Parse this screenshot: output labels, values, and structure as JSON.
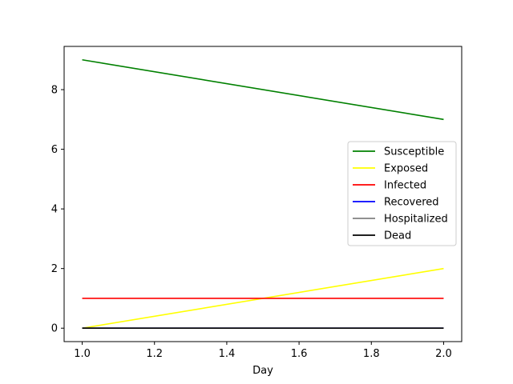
{
  "chart_data": {
    "type": "line",
    "title": "",
    "xlabel": "Day",
    "ylabel": "",
    "x": [
      1.0,
      2.0
    ],
    "xlim": [
      0.95,
      2.05
    ],
    "ylim": [
      -0.45,
      9.45
    ],
    "xticks": [
      1.0,
      1.2,
      1.4,
      1.6,
      1.8,
      2.0
    ],
    "xtick_labels": [
      "1.0",
      "1.2",
      "1.4",
      "1.6",
      "1.8",
      "2.0"
    ],
    "yticks": [
      0,
      2,
      4,
      6,
      8
    ],
    "ytick_labels": [
      "0",
      "2",
      "4",
      "6",
      "8"
    ],
    "grid": false,
    "legend_position": "center-right",
    "series": [
      {
        "name": "Susceptible",
        "color": "#008000",
        "values": [
          9,
          7
        ]
      },
      {
        "name": "Exposed",
        "color": "#ffff00",
        "values": [
          0,
          2
        ]
      },
      {
        "name": "Infected",
        "color": "#ff0000",
        "values": [
          1,
          1
        ]
      },
      {
        "name": "Recovered",
        "color": "#0000ff",
        "values": [
          0,
          0
        ]
      },
      {
        "name": "Hospitalized",
        "color": "#808080",
        "values": [
          0,
          0
        ]
      },
      {
        "name": "Dead",
        "color": "#000000",
        "values": [
          0,
          0
        ]
      }
    ]
  }
}
